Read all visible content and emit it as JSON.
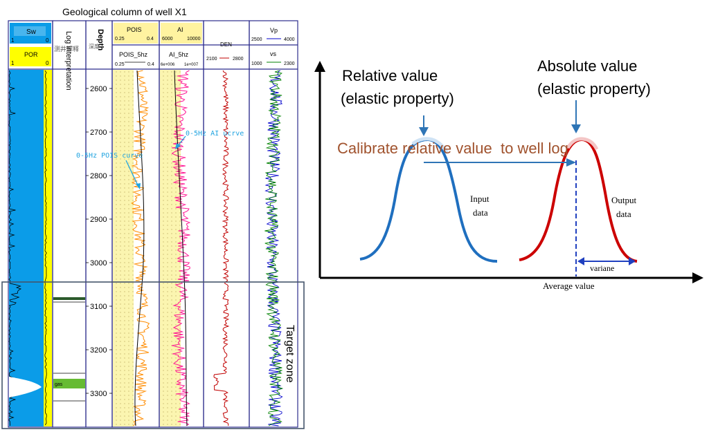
{
  "well_log": {
    "title": "Geological column of well X1",
    "sw_label": "Sw",
    "sw_scale": [
      "1",
      "0"
    ],
    "por_label": "POR",
    "por_scale": [
      "1",
      "0"
    ],
    "log_interp_header": "Log interpretation",
    "log_interp_cjk": "测井解释",
    "depth_header": "Depth",
    "depth_cjk": "深度",
    "pois_label": "POIS",
    "pois_scale": [
      "0.25",
      "0.4"
    ],
    "pois5_label": "POIS_5hz",
    "pois5_scale": [
      "0.25",
      "0.4"
    ],
    "ai_label": "AI",
    "ai_scale": [
      "6000",
      "10000"
    ],
    "ai5_label": "AI_5hz",
    "ai5_scale": [
      "6e+006",
      "1e+007"
    ],
    "den_label": "DEN",
    "den_scale": [
      "2100",
      "2800"
    ],
    "vp_label": "Vp",
    "vp_scale": [
      "2500",
      "4000"
    ],
    "vs_label": "vs",
    "vs_scale": [
      "1000",
      "2300"
    ],
    "depth_ticks": [
      "2600",
      "2700",
      "2800",
      "2900",
      "3000",
      "3100",
      "3200",
      "3300"
    ],
    "gas_label": "gas",
    "pois_annotation": "0-5Hz POIS curve",
    "ai_annotation": "0-5Hz AI ucrve",
    "target_zone_label": "Target zone",
    "colors": {
      "sw_fill": "#0b9ce8",
      "por_fill": "#ffff00",
      "pois_curve": "#ff8c00",
      "ai_curve": "#ff1493",
      "den_curve": "#c00000",
      "vp_curve": "#0000cc",
      "vs_curve": "#008000",
      "annotation": "#1fa3e0",
      "gas_fill": "#66bb33",
      "track_border": "#2b2b8c"
    }
  },
  "diagram": {
    "relative_label_1": "Relative value",
    "relative_label_2": "(elastic property)",
    "absolute_label_1": "Absolute value",
    "absolute_label_2": "(elastic property)",
    "calibrate_label": "Calibrate relative value  to well log",
    "input_label_1": "Input",
    "input_label_2": "data",
    "output_label_1": "Output",
    "output_label_2": "data",
    "variance_label": "variane",
    "x_axis_label": "Average value",
    "colors": {
      "input_curve": "#1f6fbf",
      "output_curve": "#cc0000",
      "calibrate_text": "#a0522d",
      "arrow": "#2e75b6"
    }
  }
}
